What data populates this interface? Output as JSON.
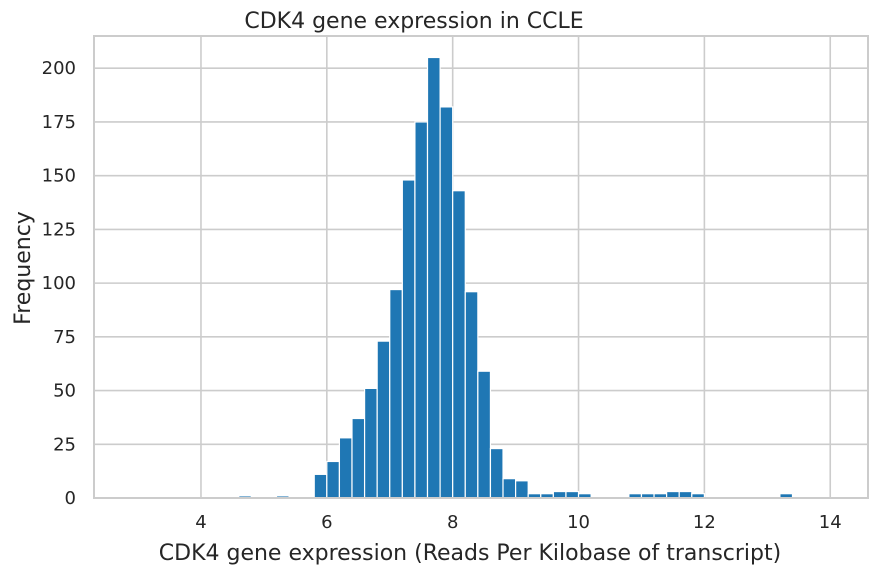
{
  "chart_data": {
    "type": "bar",
    "title": "CDK4 gene expression in CCLE",
    "xlabel": "CDK4 gene expression (Reads Per Kilobase of transcript)",
    "ylabel": "Frequency",
    "xlim": [
      2.3,
      14.6
    ],
    "ylim": [
      0,
      215
    ],
    "xticks": [
      4,
      6,
      8,
      10,
      12,
      14
    ],
    "yticks": [
      0,
      25,
      50,
      75,
      100,
      125,
      150,
      175,
      200
    ],
    "grid": true,
    "bar_color": "#1f77b4",
    "bin_start": 2.6,
    "bin_width": 0.2,
    "values": [
      0,
      0,
      0,
      0,
      0,
      0,
      0,
      0,
      0,
      0,
      1,
      0,
      0,
      1,
      0,
      0,
      11,
      17,
      28,
      37,
      51,
      73,
      97,
      148,
      175,
      205,
      182,
      143,
      96,
      59,
      23,
      9,
      8,
      2,
      2,
      3,
      3,
      2,
      0,
      0,
      0,
      2,
      2,
      2,
      3,
      3,
      2,
      0,
      0,
      0,
      0,
      0,
      0,
      2,
      0,
      0,
      0,
      0
    ]
  }
}
